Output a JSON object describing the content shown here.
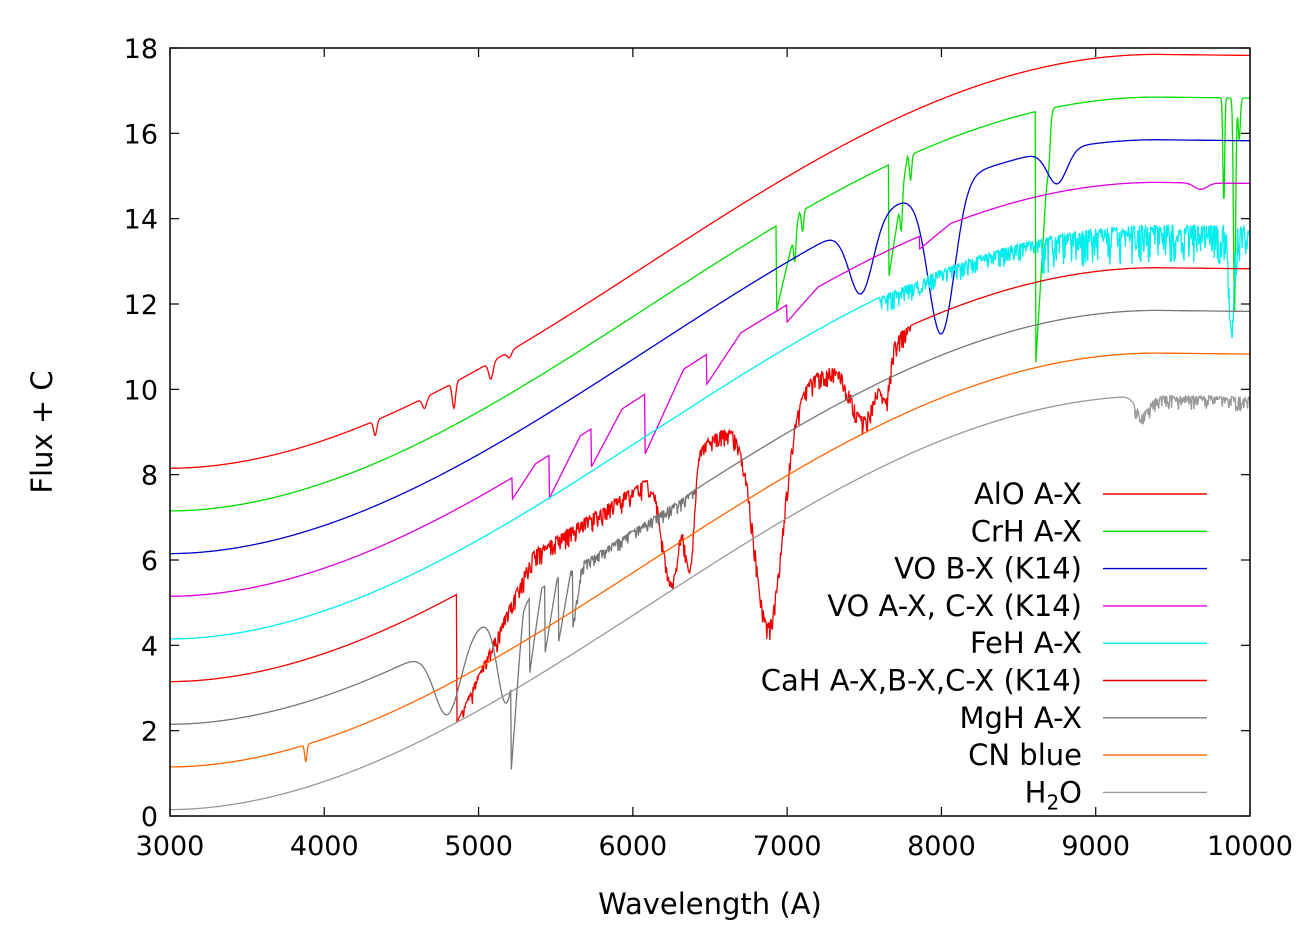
{
  "chart_data": {
    "type": "line",
    "xlabel": "Wavelength (A)",
    "ylabel": "Flux + C",
    "xlim": [
      3000,
      10000
    ],
    "ylim": [
      0,
      18
    ],
    "x_ticks": [
      3000,
      4000,
      5000,
      6000,
      7000,
      8000,
      9000,
      10000
    ],
    "y_ticks": [
      0,
      2,
      4,
      6,
      8,
      10,
      12,
      14,
      16,
      18
    ],
    "grid": false,
    "legend_position": "bottom-right",
    "series": [
      {
        "name": "AlO A-X",
        "color": "#ff0000",
        "offset": 8,
        "peak": 9.85,
        "features": [
          {
            "type": "dip",
            "x": 4330,
            "depth": 0.35,
            "width": 15
          },
          {
            "type": "dip",
            "x": 4650,
            "depth": 0.25,
            "width": 20
          },
          {
            "type": "dip",
            "x": 4840,
            "depth": 0.6,
            "width": 15
          },
          {
            "type": "dip",
            "x": 5080,
            "depth": 0.4,
            "width": 20
          },
          {
            "type": "dip",
            "x": 5200,
            "depth": 0.15,
            "width": 20
          }
        ]
      },
      {
        "name": "CrH A-X",
        "color": "#00dd00",
        "offset": 7,
        "peak": 9.85,
        "features": [
          {
            "type": "sawtooth",
            "x": 6930,
            "depth": 2.0,
            "length": 150
          },
          {
            "type": "sawtooth",
            "x": 7660,
            "depth": 2.6,
            "length": 120
          },
          {
            "type": "sawtooth",
            "x": 8610,
            "depth": 6.0,
            "length": 100
          },
          {
            "type": "dip",
            "x": 7050,
            "depth": 0.7,
            "width": 10
          },
          {
            "type": "dip",
            "x": 7100,
            "depth": 0.5,
            "width": 10
          },
          {
            "type": "dip",
            "x": 7740,
            "depth": 0.8,
            "width": 10
          },
          {
            "type": "dip",
            "x": 7800,
            "depth": 0.6,
            "width": 10
          },
          {
            "type": "dip",
            "x": 8700,
            "depth": 0.6,
            "width": 15
          },
          {
            "type": "dip",
            "x": 9830,
            "depth": 2.5,
            "width": 8
          },
          {
            "type": "dip",
            "x": 9900,
            "depth": 5.0,
            "width": 10
          },
          {
            "type": "dip",
            "x": 9930,
            "depth": 1.0,
            "width": 10
          }
        ]
      },
      {
        "name": "VO B-X (K14)",
        "color": "#0000cc",
        "offset": 6,
        "peak": 9.85,
        "features": [
          {
            "type": "dip",
            "x": 7480,
            "depth": 1.7,
            "width": 110
          },
          {
            "type": "dip",
            "x": 8000,
            "depth": 3.5,
            "width": 120
          },
          {
            "type": "dip",
            "x": 8750,
            "depth": 0.8,
            "width": 90
          }
        ]
      },
      {
        "name": "VO A-X, C-X (K14)",
        "color": "#dd00dd",
        "offset": 5,
        "peak": 9.85,
        "features": [
          {
            "type": "sawtooth",
            "x": 5220,
            "depth": 0.5,
            "length": 150
          },
          {
            "type": "sawtooth",
            "x": 5460,
            "depth": 1.0,
            "length": 200
          },
          {
            "type": "sawtooth",
            "x": 5730,
            "depth": 0.9,
            "length": 200
          },
          {
            "type": "sawtooth",
            "x": 6080,
            "depth": 1.4,
            "length": 250
          },
          {
            "type": "sawtooth",
            "x": 6480,
            "depth": 0.7,
            "length": 220
          },
          {
            "type": "sawtooth",
            "x": 7000,
            "depth": 0.4,
            "length": 200
          },
          {
            "type": "sawtooth",
            "x": 7860,
            "depth": 0.3,
            "length": 200
          },
          {
            "type": "dip",
            "x": 9680,
            "depth": 0.15,
            "width": 60
          }
        ]
      },
      {
        "name": "FeH A-X",
        "color": "#00eeee",
        "offset": 4,
        "peak": 9.85,
        "features": [
          {
            "type": "noise",
            "from": 7600,
            "to": 8650,
            "amp": 0.45
          },
          {
            "type": "noise",
            "from": 8650,
            "to": 10000,
            "amp": 0.9
          },
          {
            "type": "dip",
            "x": 9880,
            "depth": 2.5,
            "width": 20
          }
        ]
      },
      {
        "name": "CaH A-X,B-X,C-X (K14)",
        "color": "#ee0000",
        "offset": 3,
        "peak": 9.85,
        "features": [
          {
            "type": "sawtooth",
            "x": 4860,
            "depth": 3.0,
            "length": 500
          },
          {
            "type": "noise",
            "from": 4900,
            "to": 7800,
            "amp": 0.45
          },
          {
            "type": "dip",
            "x": 6250,
            "depth": 2.8,
            "width": 80
          },
          {
            "type": "dip",
            "x": 6370,
            "depth": 2.5,
            "width": 40
          },
          {
            "type": "dip",
            "x": 6880,
            "depth": 5.2,
            "width": 130
          },
          {
            "type": "dip",
            "x": 7500,
            "depth": 1.6,
            "width": 120
          },
          {
            "type": "dip",
            "x": 7640,
            "depth": 1.0,
            "width": 40
          }
        ]
      },
      {
        "name": "MgH A-X",
        "color": "#777777",
        "offset": 2,
        "peak": 9.85,
        "features": [
          {
            "type": "dip",
            "x": 4800,
            "depth": 1.7,
            "width": 120
          },
          {
            "type": "dip",
            "x": 5180,
            "depth": 2.2,
            "width": 80
          },
          {
            "type": "sawtooth",
            "x": 5210,
            "depth": 2.0,
            "length": 80
          },
          {
            "type": "sawtooth",
            "x": 5330,
            "depth": 1.8,
            "length": 80
          },
          {
            "type": "sawtooth",
            "x": 5430,
            "depth": 1.6,
            "length": 80
          },
          {
            "type": "sawtooth",
            "x": 5520,
            "depth": 1.5,
            "length": 80
          },
          {
            "type": "sawtooth",
            "x": 5610,
            "depth": 1.4,
            "length": 60
          },
          {
            "type": "noise",
            "from": 5600,
            "to": 6400,
            "amp": 0.3
          }
        ]
      },
      {
        "name": "CN blue",
        "color": "#ff6600",
        "offset": 1,
        "peak": 9.85,
        "features": [
          {
            "type": "dip",
            "x": 3880,
            "depth": 0.4,
            "width": 10
          }
        ]
      },
      {
        "name": "H2O",
        "name_display": "H",
        "name_sub": "2",
        "name_tail": "O",
        "color": "#999999",
        "offset": 0,
        "peak": 9.85,
        "features": [
          {
            "type": "noise",
            "from": 9250,
            "to": 10000,
            "amp": 0.35
          },
          {
            "type": "dip",
            "x": 9300,
            "depth": 0.4,
            "width": 60
          }
        ]
      }
    ]
  }
}
